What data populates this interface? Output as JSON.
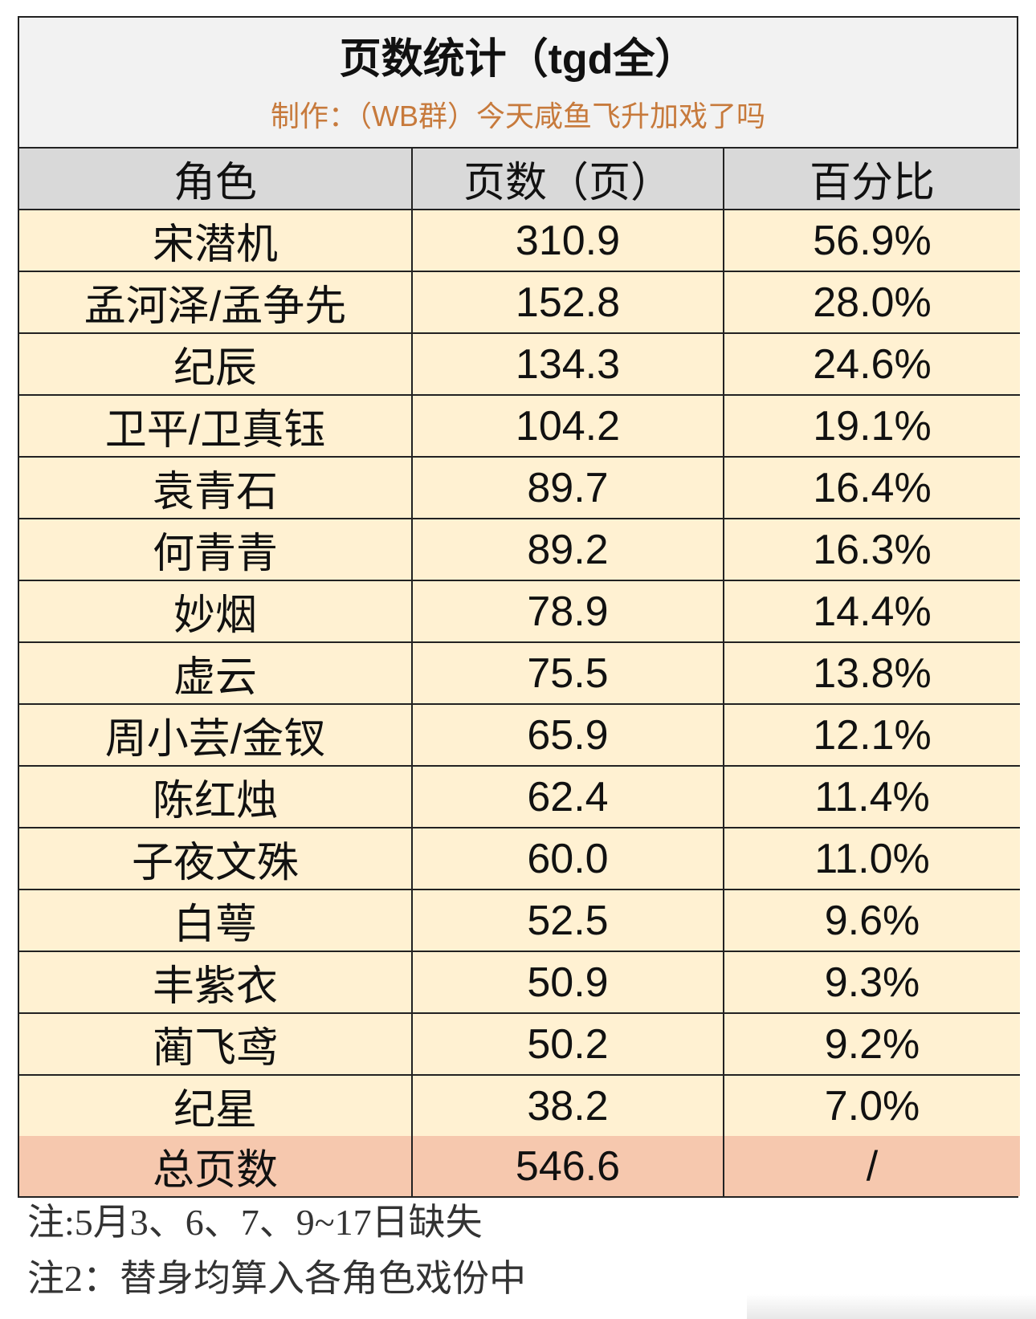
{
  "title": "页数统计（tgd全）",
  "subtitle": "制作：（WB群）今天咸鱼飞升加戏了吗",
  "headers": [
    "角色",
    "页数（页）",
    "百分比"
  ],
  "rows": [
    {
      "role": "宋潜机",
      "pages": "310.9",
      "percent": "56.9%"
    },
    {
      "role": "孟河泽/孟争先",
      "pages": "152.8",
      "percent": "28.0%"
    },
    {
      "role": "纪辰",
      "pages": "134.3",
      "percent": "24.6%"
    },
    {
      "role": "卫平/卫真钰",
      "pages": "104.2",
      "percent": "19.1%"
    },
    {
      "role": "袁青石",
      "pages": "89.7",
      "percent": "16.4%"
    },
    {
      "role": "何青青",
      "pages": "89.2",
      "percent": "16.3%"
    },
    {
      "role": "妙烟",
      "pages": "78.9",
      "percent": "14.4%"
    },
    {
      "role": "虚云",
      "pages": "75.5",
      "percent": "13.8%"
    },
    {
      "role": "周小芸/金钗",
      "pages": "65.9",
      "percent": "12.1%"
    },
    {
      "role": "陈红烛",
      "pages": "62.4",
      "percent": "11.4%"
    },
    {
      "role": "子夜文殊",
      "pages": "60.0",
      "percent": "11.0%"
    },
    {
      "role": "白萼",
      "pages": "52.5",
      "percent": "9.6%"
    },
    {
      "role": "丰紫衣",
      "pages": "50.9",
      "percent": "9.3%"
    },
    {
      "role": "蔺飞鸢",
      "pages": "50.2",
      "percent": "9.2%"
    },
    {
      "role": "纪星",
      "pages": "38.2",
      "percent": "7.0%"
    }
  ],
  "total": {
    "role": "总页数",
    "pages": "546.6",
    "percent": "/"
  },
  "notes": [
    "注:5月3、6、7、9~17日缺失",
    "注2：替身均算入各角色戏份中"
  ],
  "colors": {
    "header_bg": "#d9d9d9",
    "row_bg": "#fff1d2",
    "total_bg": "#f6c8ae",
    "subtitle": "#c77a3c"
  }
}
